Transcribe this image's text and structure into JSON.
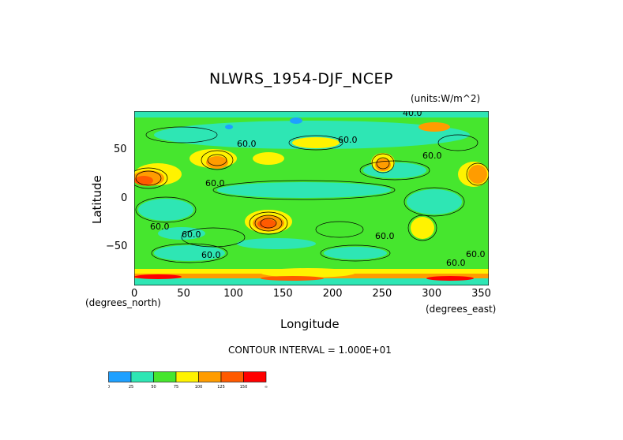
{
  "chart_data": {
    "type": "heatmap",
    "title": "NLWRS_1954-DJF_NCEP",
    "units_label": "(units:W/m^2)",
    "xlabel": "Longitude",
    "ylabel": "Latitude",
    "x_unit_note": "(degrees_east)",
    "y_unit_note": "(degrees_north)",
    "xlim": [
      0,
      357.5
    ],
    "ylim": [
      -90,
      90
    ],
    "x_ticks": [
      0,
      50,
      100,
      150,
      200,
      250,
      300,
      350
    ],
    "x_tick_labels": [
      "0",
      "50",
      "100",
      "150",
      "200",
      "250",
      "300",
      "350"
    ],
    "y_ticks": [
      50,
      0,
      -50
    ],
    "y_tick_labels": [
      "50",
      "0",
      "−50"
    ],
    "contour_note": "CONTOUR INTERVAL = 1.000E+01",
    "contour_labels": [
      "40.0",
      "60.0",
      "60.0",
      "60.0",
      "60.0",
      "60.0",
      "60.0",
      "60.0",
      "60.0",
      "60.0",
      "60.0"
    ],
    "colorbar": {
      "levels": [
        "0",
        "25",
        "50",
        "75",
        "100",
        "125",
        "150",
        "∞"
      ],
      "colors": [
        "#1ea0ff",
        "#2ee6b4",
        "#46e62e",
        "#fff300",
        "#ff9c00",
        "#ff5a00",
        "#ff0000"
      ]
    }
  }
}
